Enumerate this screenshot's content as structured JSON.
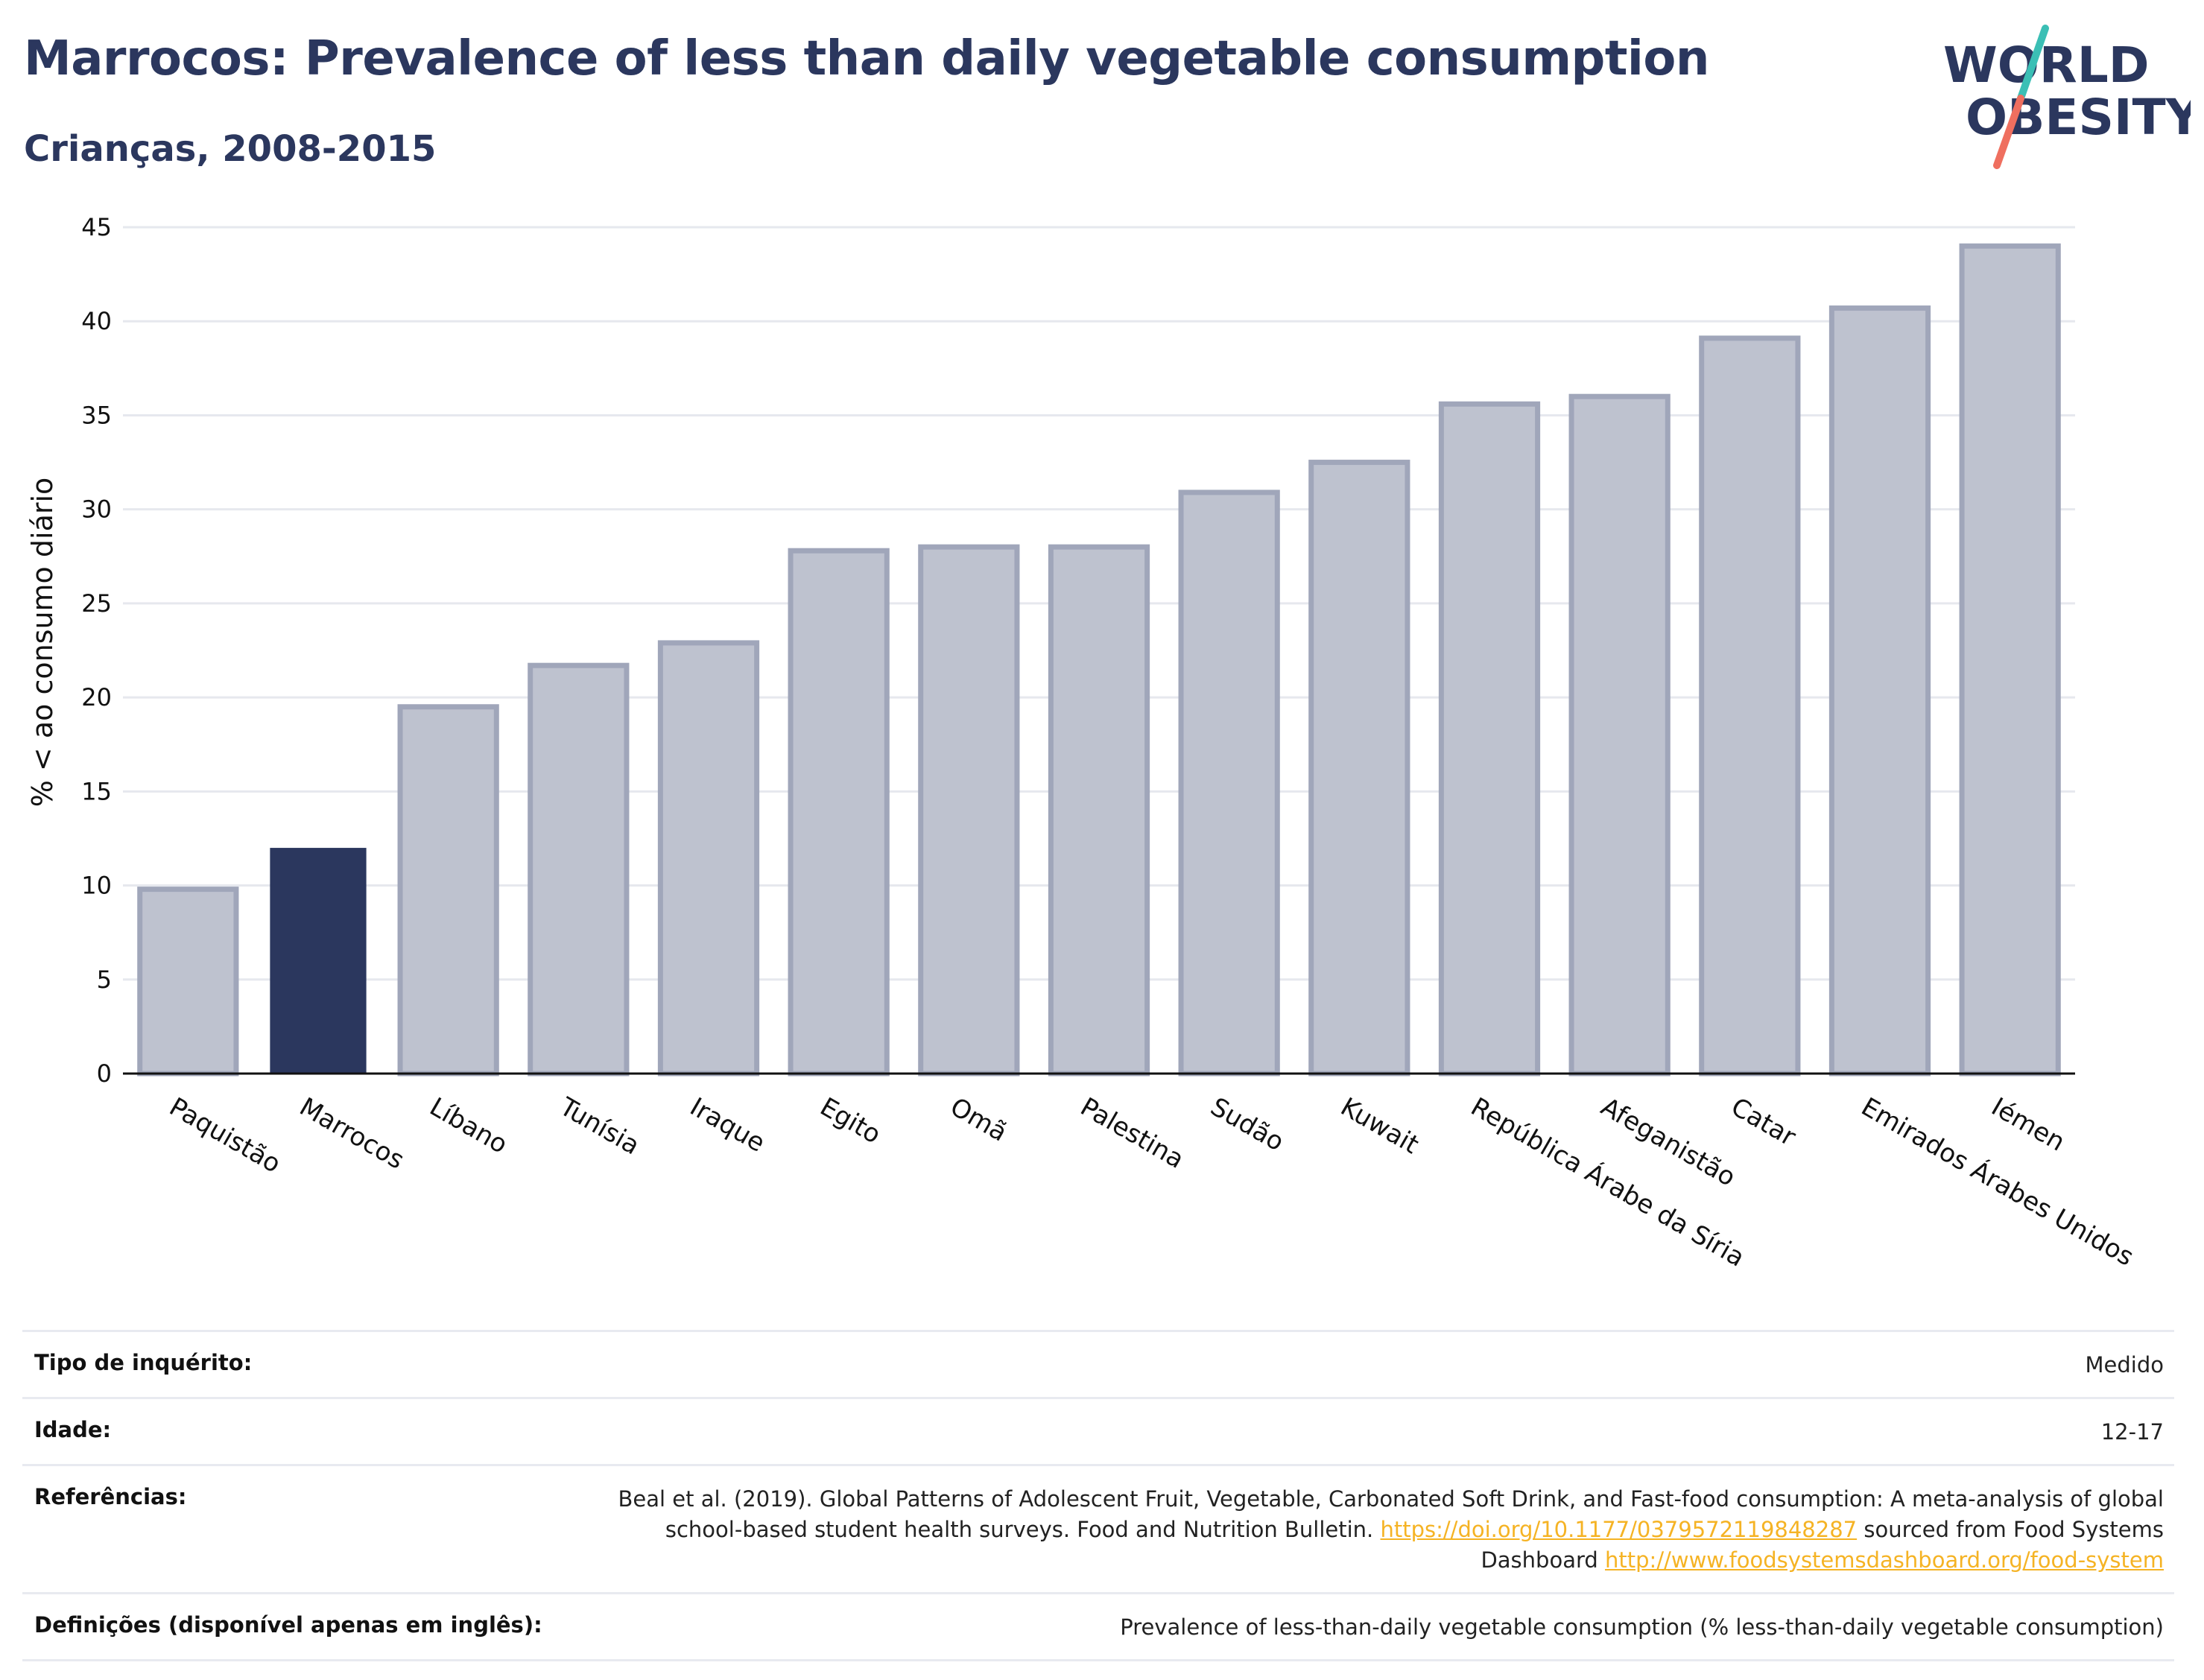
{
  "header": {
    "title": "Marrocos: Prevalence of less than daily vegetable consumption",
    "subtitle": "Crianças, 2008-2015"
  },
  "logo": {
    "line1": "WORLD",
    "line2": "OBESITY",
    "colors": {
      "text": "#2b375e",
      "slash_top": "#3bbfb5",
      "slash_bottom": "#ef6f5f"
    }
  },
  "colors": {
    "highlight_bar": "#2b375e",
    "other_bar_fill": "#bec2cf",
    "other_bar_stroke": "#a0a6ba",
    "gridline": "#e6e8ee",
    "axis": "#111111"
  },
  "chart_data": {
    "type": "bar",
    "title": "Marrocos: Prevalence of less than daily vegetable consumption",
    "subtitle": "Crianças, 2008-2015",
    "xlabel": "",
    "ylabel": "% < ao consumo diário",
    "ylim": [
      0,
      45
    ],
    "yticks": [
      0,
      5,
      10,
      15,
      20,
      25,
      30,
      35,
      40,
      45
    ],
    "grid": true,
    "highlight": "Marrocos",
    "categories": [
      "Paquistão",
      "Marrocos",
      "Líbano",
      "Tunísia",
      "Iraque",
      "Egito",
      "Omã",
      "Palestina",
      "Sudão",
      "Kuwait",
      "República Árabe da Síria",
      "Afeganistão",
      "Catar",
      "Emirados Árabes Unidos",
      "Iémen"
    ],
    "values": [
      9.8,
      12.0,
      19.5,
      21.7,
      22.9,
      27.8,
      28.0,
      28.0,
      30.9,
      32.5,
      35.6,
      36.0,
      39.1,
      40.7,
      44.0
    ]
  },
  "info": {
    "rows": [
      {
        "key": "Tipo de inquérito:",
        "value": "Medido"
      },
      {
        "key": "Idade:",
        "value": "12-17"
      },
      {
        "key": "Referências:",
        "value_parts": {
          "text1": "Beal et al. (2019). Global Patterns of Adolescent Fruit, Vegetable, Carbonated Soft Drink, and Fast-food consumption: A meta-analysis of global school-based student health surveys. Food and Nutrition Bulletin. ",
          "link1": "https://doi.org/10.1177/0379572119848287",
          "text2": " sourced from Food Systems Dashboard ",
          "link2": "http://www.foodsystemsdashboard.org/food-system"
        }
      },
      {
        "key": "Definições (disponível apenas em inglês):",
        "value": "Prevalence of less-than-daily vegetable consumption (% less-than-daily vegetable consumption)"
      }
    ]
  }
}
